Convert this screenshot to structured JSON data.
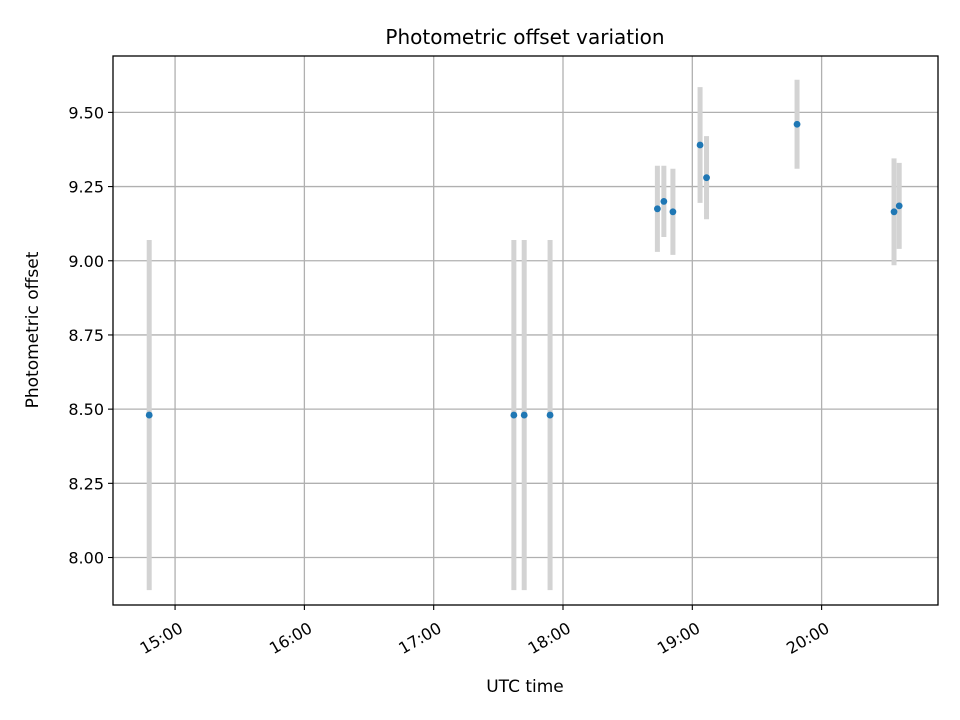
{
  "chart_data": {
    "type": "scatter",
    "title": "Photometric offset variation",
    "xlabel": "UTC time",
    "ylabel": "Photometric offset",
    "xlim_hours": [
      14.52,
      20.9
    ],
    "ylim": [
      7.84,
      9.69
    ],
    "grid": true,
    "x_ticks": [
      {
        "value": 15,
        "label": "15:00"
      },
      {
        "value": 16,
        "label": "16:00"
      },
      {
        "value": 17,
        "label": "17:00"
      },
      {
        "value": 18,
        "label": "18:00"
      },
      {
        "value": 19,
        "label": "19:00"
      },
      {
        "value": 20,
        "label": "20:00"
      }
    ],
    "y_ticks": [
      {
        "value": 8.0,
        "label": "8.00"
      },
      {
        "value": 8.25,
        "label": "8.25"
      },
      {
        "value": 8.5,
        "label": "8.50"
      },
      {
        "value": 8.75,
        "label": "8.75"
      },
      {
        "value": 9.0,
        "label": "9.00"
      },
      {
        "value": 9.25,
        "label": "9.25"
      },
      {
        "value": 9.5,
        "label": "9.50"
      }
    ],
    "point_color": "#1f77b4",
    "errorbar_color": "#d3d3d3",
    "points": [
      {
        "x": 14.8,
        "y": 8.48,
        "err": 0.59
      },
      {
        "x": 17.62,
        "y": 8.48,
        "err": 0.59
      },
      {
        "x": 17.7,
        "y": 8.48,
        "err": 0.59
      },
      {
        "x": 17.9,
        "y": 8.48,
        "err": 0.59
      },
      {
        "x": 18.73,
        "y": 9.175,
        "err": 0.145
      },
      {
        "x": 18.78,
        "y": 9.2,
        "err": 0.12
      },
      {
        "x": 18.85,
        "y": 9.165,
        "err": 0.145
      },
      {
        "x": 19.06,
        "y": 9.39,
        "err": 0.195
      },
      {
        "x": 19.11,
        "y": 9.28,
        "err": 0.14
      },
      {
        "x": 19.81,
        "y": 9.46,
        "err": 0.15
      },
      {
        "x": 20.56,
        "y": 9.165,
        "err": 0.18
      },
      {
        "x": 20.6,
        "y": 9.185,
        "err": 0.145
      }
    ]
  }
}
